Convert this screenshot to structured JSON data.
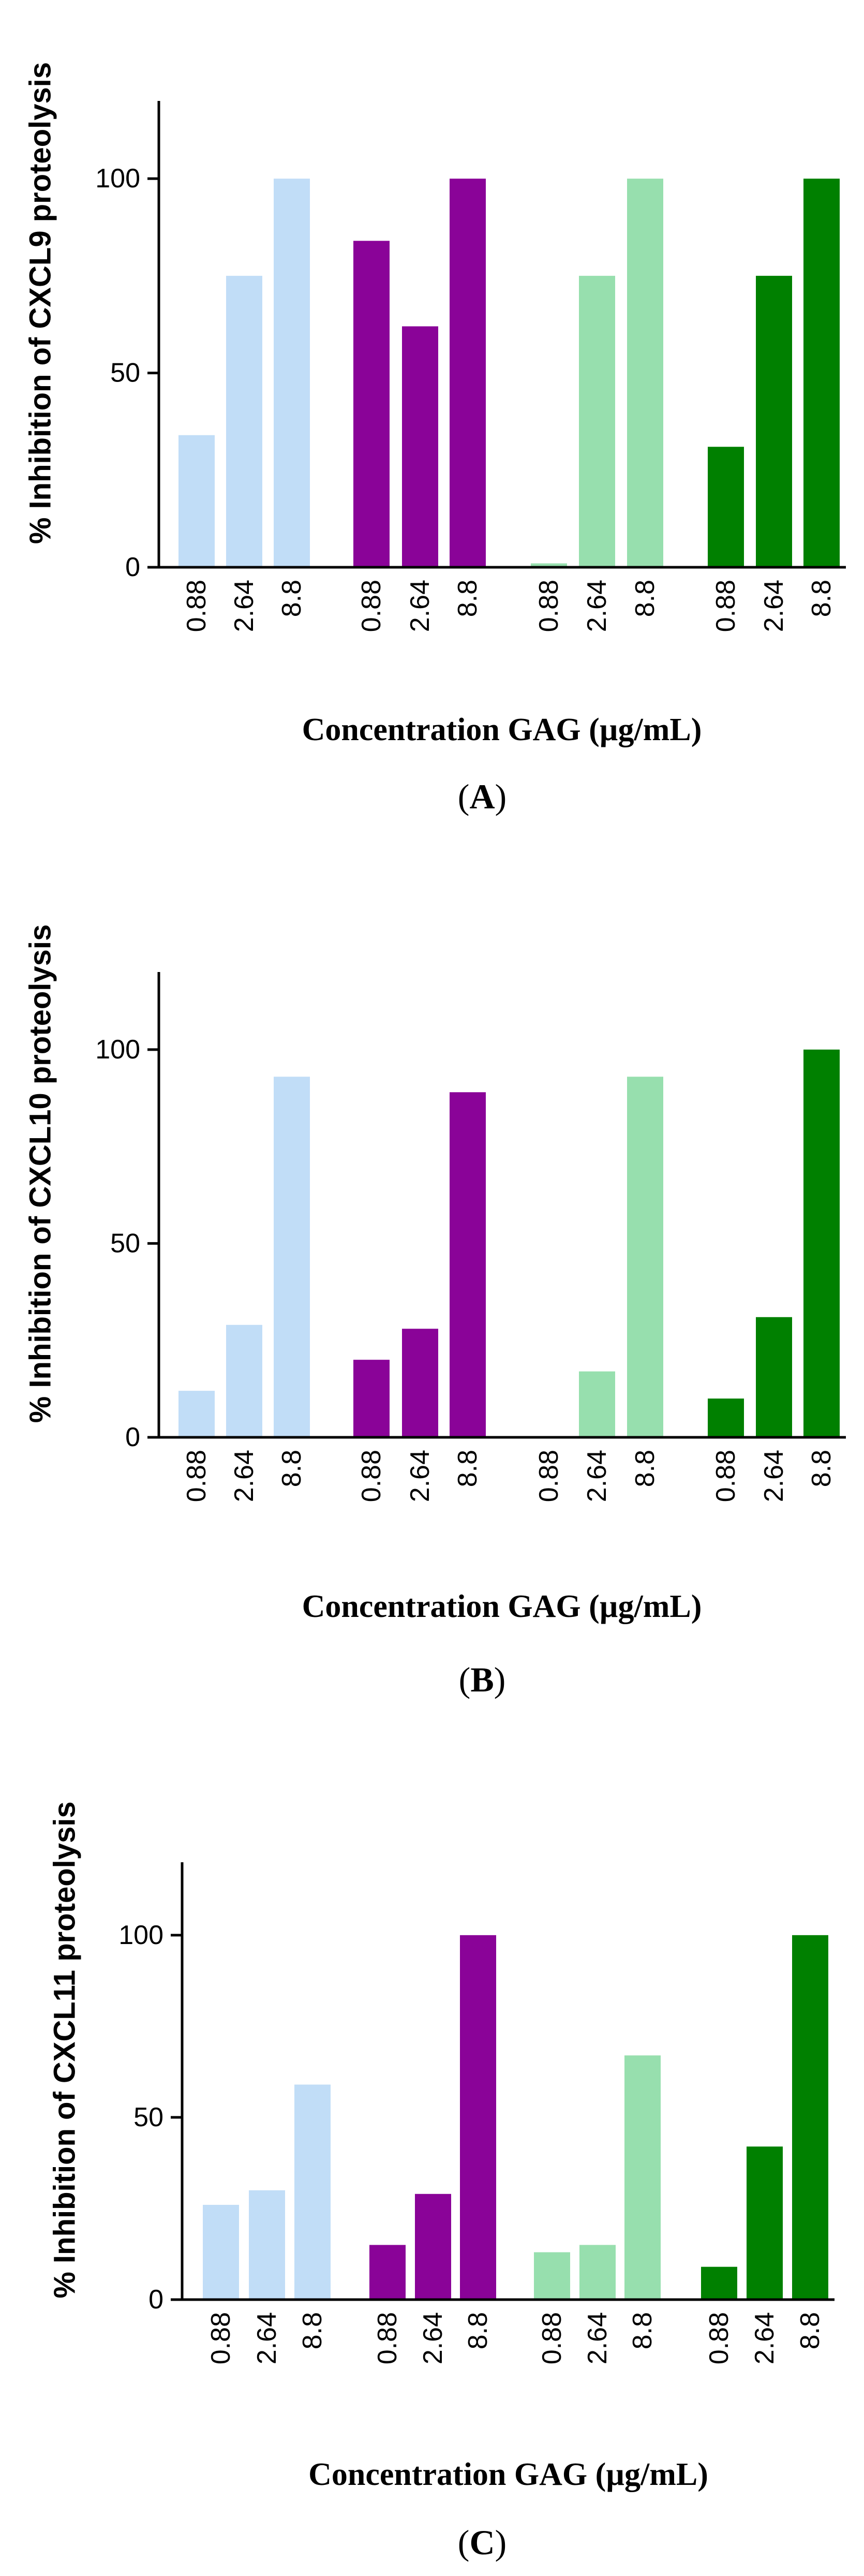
{
  "colors": {
    "group1": "#C1DDF7",
    "group2": "#8A0398",
    "group3": "#97DFAE",
    "group4": "#008000",
    "axis": "#000000"
  },
  "chart_data": [
    {
      "type": "bar",
      "panel": "A",
      "ylabel": "% Inhibition of CXCL9 proteolysis",
      "xlabel": "Concentration GAG (µg/mL)",
      "ylim": [
        0,
        120
      ],
      "yticks": [
        "0",
        "50",
        "100"
      ],
      "categories": [
        "0.88",
        "2.64",
        "8.8"
      ],
      "series": [
        {
          "name": "group1",
          "values": [
            34,
            75,
            100
          ]
        },
        {
          "name": "group2",
          "values": [
            84,
            62,
            100
          ]
        },
        {
          "name": "group3",
          "values": [
            1,
            75,
            100
          ]
        },
        {
          "name": "group4",
          "values": [
            31,
            75,
            100
          ]
        }
      ]
    },
    {
      "type": "bar",
      "panel": "B",
      "ylabel": "% Inhibition of CXCL10 proteolysis",
      "xlabel": "Concentration GAG (µg/mL)",
      "ylim": [
        0,
        120
      ],
      "yticks": [
        "0",
        "50",
        "100"
      ],
      "categories": [
        "0.88",
        "2.64",
        "8.8"
      ],
      "series": [
        {
          "name": "group1",
          "values": [
            12,
            29,
            93
          ]
        },
        {
          "name": "group2",
          "values": [
            20,
            28,
            89
          ]
        },
        {
          "name": "group3",
          "values": [
            0,
            17,
            93
          ]
        },
        {
          "name": "group4",
          "values": [
            10,
            31,
            100
          ]
        }
      ]
    },
    {
      "type": "bar",
      "panel": "C",
      "ylabel": "% Inhibition of CXCL11 proteolysis",
      "xlabel": "Concentration GAG (µg/mL)",
      "ylim": [
        0,
        120
      ],
      "yticks": [
        "0",
        "50",
        "100"
      ],
      "categories": [
        "0.88",
        "2.64",
        "8.8"
      ],
      "series": [
        {
          "name": "group1",
          "values": [
            26,
            30,
            59
          ]
        },
        {
          "name": "group2",
          "values": [
            15,
            29,
            100
          ]
        },
        {
          "name": "group3",
          "values": [
            13,
            15,
            67
          ]
        },
        {
          "name": "group4",
          "values": [
            9,
            42,
            100
          ]
        }
      ]
    }
  ]
}
